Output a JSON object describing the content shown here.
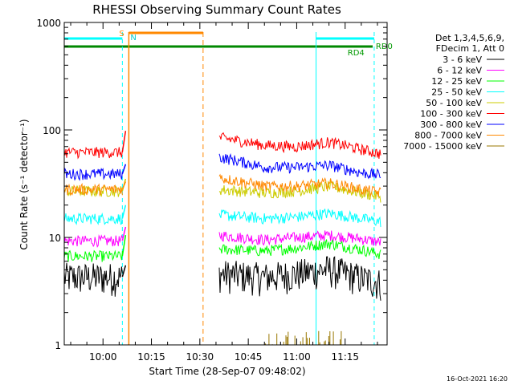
{
  "chart_data": {
    "type": "line",
    "title": "RHESSI Observing Summary Count Rates",
    "xlabel": "Start Time (28-Sep-07 09:48:02)",
    "ylabel": "Count Rate (s⁻¹ detector⁻¹)",
    "y_scale": "log",
    "ylim": [
      1,
      1000
    ],
    "xlim": [
      "09:48",
      "11:28"
    ],
    "x_ticks": [
      "10:00",
      "10:15",
      "10:30",
      "10:45",
      "11:00",
      "11:15"
    ],
    "y_ticks": [
      "1",
      "10",
      "100",
      "1000"
    ],
    "legend_header": [
      "Det 1,3,4,5,6,9,",
      "FDecim 1, Att 0"
    ],
    "legend_position": "right",
    "series": [
      {
        "name": "3 - 6 keV",
        "color": "#000000",
        "x": [
          "09:48",
          "10:06",
          "10:07",
          "10:36",
          "10:50",
          "11:00",
          "11:10",
          "11:20",
          "11:26"
        ],
        "values": [
          4.3,
          4.3,
          5.5,
          4.6,
          4.3,
          4.6,
          5.1,
          4.2,
          3.8
        ]
      },
      {
        "name": "6 - 12 keV",
        "color": "#ff00ff",
        "x": [
          "09:48",
          "10:06",
          "10:07",
          "10:36",
          "10:50",
          "11:00",
          "11:10",
          "11:20",
          "11:26"
        ],
        "values": [
          9.3,
          9.3,
          12.5,
          10.5,
          9.5,
          10.0,
          10.5,
          9.7,
          9.0
        ]
      },
      {
        "name": "12 - 25 keV",
        "color": "#00ff00",
        "x": [
          "09:48",
          "10:06",
          "10:07",
          "10:36",
          "10:50",
          "11:00",
          "11:10",
          "11:20",
          "11:26"
        ],
        "values": [
          6.7,
          6.7,
          10.5,
          7.8,
          7.5,
          8.0,
          8.8,
          7.7,
          7.0
        ]
      },
      {
        "name": "25 - 50 keV",
        "color": "#00ffff",
        "x": [
          "09:48",
          "10:06",
          "10:07",
          "10:36",
          "10:50",
          "11:00",
          "11:10",
          "11:20",
          "11:26"
        ],
        "values": [
          15.0,
          15.0,
          20.0,
          16.2,
          15.0,
          15.5,
          16.8,
          15.0,
          14.0
        ]
      },
      {
        "name": "50 - 100 keV",
        "color": "#cccc00",
        "x": [
          "09:48",
          "10:06",
          "10:07",
          "10:36",
          "10:50",
          "11:00",
          "11:10",
          "11:20",
          "11:26"
        ],
        "values": [
          27.0,
          27.0,
          35.0,
          28.0,
          26.0,
          27.0,
          30.0,
          26.0,
          24.0
        ]
      },
      {
        "name": "100 - 300 keV",
        "color": "#ff0000",
        "x": [
          "09:48",
          "10:06",
          "10:07",
          "10:36",
          "10:50",
          "11:00",
          "11:10",
          "11:20",
          "11:26"
        ],
        "values": [
          62.0,
          62.0,
          98.0,
          85.0,
          72.0,
          70.0,
          77.0,
          66.0,
          60.0
        ]
      },
      {
        "name": "300 - 800 keV",
        "color": "#0000ff",
        "x": [
          "09:48",
          "10:06",
          "10:07",
          "10:36",
          "10:50",
          "11:00",
          "11:10",
          "11:20",
          "11:26"
        ],
        "values": [
          39.0,
          39.0,
          48.0,
          56.0,
          45.0,
          45.0,
          47.0,
          40.0,
          38.0
        ]
      },
      {
        "name": "800 - 7000 keV",
        "color": "#ff8800",
        "x": [
          "09:48",
          "10:06",
          "10:07",
          "10:36",
          "10:50",
          "11:00",
          "11:10",
          "11:20",
          "11:26"
        ],
        "values": [
          28.0,
          28.0,
          33.0,
          36.0,
          30.0,
          30.0,
          32.0,
          28.0,
          26.0
        ]
      },
      {
        "name": "7000 - 15000 keV",
        "color": "#997700",
        "x": [
          "10:36",
          "10:57",
          "11:05",
          "11:06",
          "11:07",
          "11:08",
          "11:09",
          "11:10",
          "11:12",
          "11:13"
        ],
        "values": [
          1.0,
          1.15,
          1.15,
          1.25,
          1.2,
          1.3,
          1.25,
          1.2,
          1.1,
          1.15
        ]
      }
    ],
    "annotations": [
      {
        "label": "S",
        "x": "10:06",
        "color": "#ff8800"
      },
      {
        "label": "N",
        "x": "10:08",
        "color": "#00cccc"
      },
      {
        "label": "RD0",
        "x": "11:24",
        "color": "#009900"
      },
      {
        "label": "RD4",
        "x": "11:17",
        "color": "#009900"
      }
    ],
    "timestamp": "16-Oct-2021 16:20",
    "grid": false
  }
}
